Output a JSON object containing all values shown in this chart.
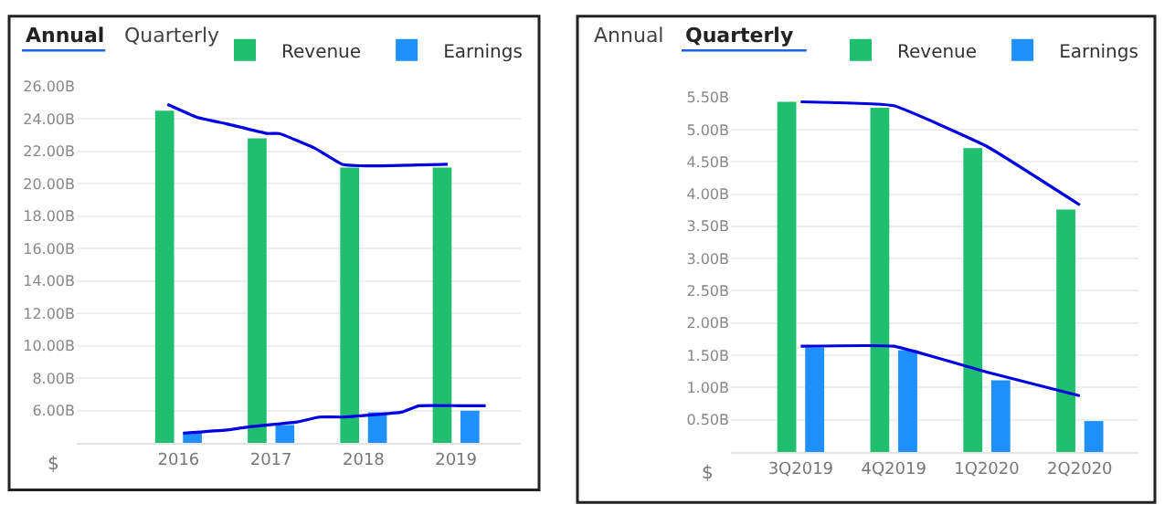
{
  "chart_data": [
    {
      "type": "bar",
      "x": [
        2016,
        2017,
        2018,
        2019
      ],
      "annotations": [
        "Annual",
        "Quarterly",
        "$"
      ],
      "legend": "top right",
      "grid": "y",
      "xlim": [
        2014.9,
        2019.7
      ],
      "xticks": [
        2016,
        2017,
        2018,
        2019
      ],
      "ylim": [
        4,
        26
      ],
      "yticks": [
        {
          "value": 6,
          "label": "6.00B"
        },
        {
          "value": 8,
          "label": "8.00B"
        },
        {
          "value": 10,
          "label": "10.00B"
        },
        {
          "value": 12,
          "label": "12.00B"
        },
        {
          "value": 14,
          "label": "14.00B"
        },
        {
          "value": 16,
          "label": "16.00B"
        },
        {
          "value": 18,
          "label": "18.00B"
        },
        {
          "value": 20,
          "label": "20.00B"
        },
        {
          "value": 22,
          "label": "22.00B"
        },
        {
          "value": 24,
          "label": "24.00B"
        },
        {
          "value": 26,
          "label": "26.00B"
        }
      ],
      "series": [
        {
          "name": "Revenue",
          "color": "#1fbf6f",
          "values": [
            24.5,
            22.8,
            21.0,
            21.0
          ]
        },
        {
          "name": "Earnings",
          "color": "#1e90ff",
          "values": [
            4.7,
            5.1,
            5.9,
            6.0
          ]
        },
        {
          "type": "line",
          "color": "#0000e0",
          "x": [
            2015.88,
            2016.2,
            2016.52,
            2016.96,
            2017.09,
            2017.47,
            2017.77,
            2018.09,
            2018.91
          ],
          "values": [
            24.9,
            24.1,
            23.7,
            23.1,
            23.1,
            22.2,
            21.2,
            21.1,
            21.2
          ]
        },
        {
          "type": "line",
          "color": "#0000e0",
          "x": [
            2016.05,
            2016.52,
            2016.77,
            2017.28,
            2017.52,
            2017.77,
            2018.41,
            2018.6,
            2019.04,
            2019.32
          ],
          "values": [
            4.6,
            4.8,
            5.0,
            5.3,
            5.6,
            5.6,
            5.9,
            6.3,
            6.3,
            6.3
          ]
        }
      ]
    },
    {
      "type": "bar",
      "categories": [
        "3Q2019",
        "4Q2019",
        "1Q2020",
        "2Q2020"
      ],
      "annotations": [
        "Annual",
        "Quarterly",
        "$"
      ],
      "legend": "top right",
      "grid": "y",
      "ylim": [
        0,
        5.5
      ],
      "yticks": [
        {
          "value": 0.5,
          "label": "0.50B"
        },
        {
          "value": 1.0,
          "label": "1.00B"
        },
        {
          "value": 1.5,
          "label": "1.50B"
        },
        {
          "value": 2.0,
          "label": "2.00B"
        },
        {
          "value": 2.5,
          "label": "2.50B"
        },
        {
          "value": 3.0,
          "label": "3.00B"
        },
        {
          "value": 3.5,
          "label": "3.50B"
        },
        {
          "value": 4.0,
          "label": "4.00B"
        },
        {
          "value": 4.5,
          "label": "4.50B"
        },
        {
          "value": 5.0,
          "label": "5.00B"
        },
        {
          "value": 5.5,
          "label": "5.50B"
        }
      ],
      "series": [
        {
          "name": "Revenue",
          "color": "#1fbf6f",
          "values": [
            5.43,
            5.34,
            4.71,
            3.76
          ]
        },
        {
          "name": "Earnings",
          "color": "#1e90ff",
          "values": [
            1.62,
            1.58,
            1.11,
            0.48
          ]
        },
        {
          "type": "line",
          "color": "#0000e0",
          "values": [
            5.43,
            5.37,
            4.74,
            3.83
          ]
        },
        {
          "type": "line",
          "color": "#0000e0",
          "values": [
            1.64,
            1.64,
            1.24,
            0.87
          ]
        }
      ]
    }
  ]
}
